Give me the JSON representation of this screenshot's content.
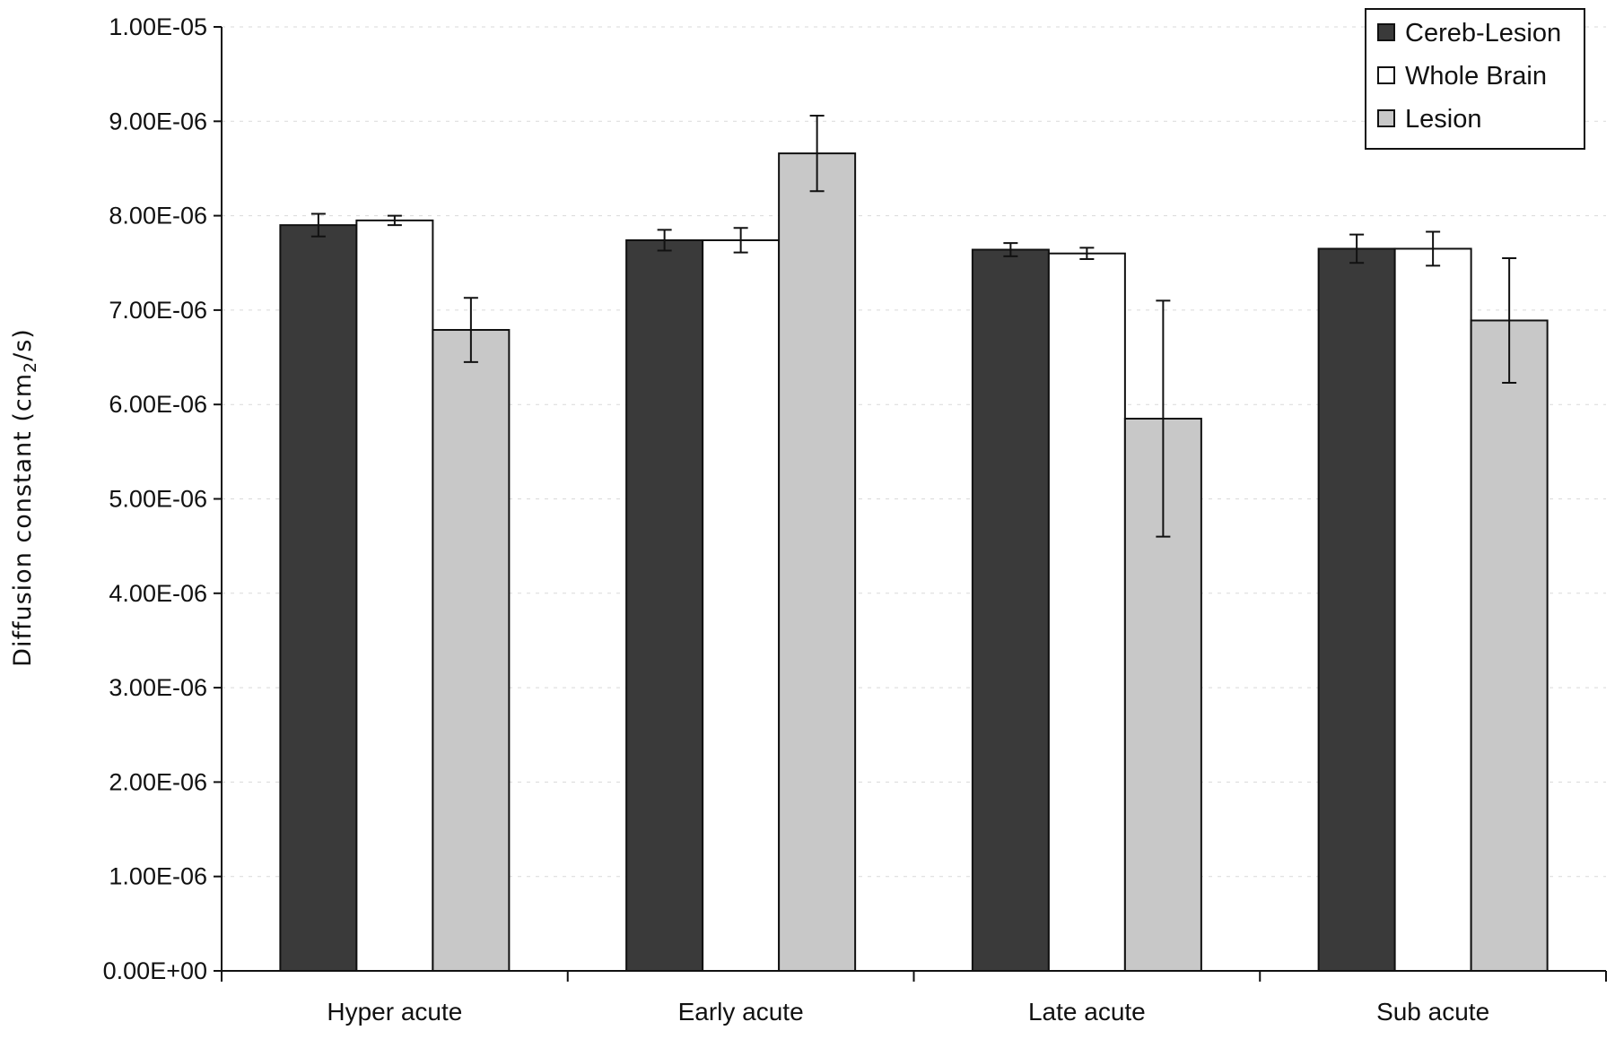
{
  "chart_data": {
    "type": "bar",
    "title": "",
    "xlabel": "",
    "ylabel": "Diffusion constant (cm",
    "ylabel_sub": "2",
    "ylabel_end": "/s)",
    "categories": [
      "Hyper acute",
      "Early acute",
      "Late acute",
      "Sub acute"
    ],
    "ylim": [
      0,
      1e-05
    ],
    "yticks": [
      0,
      1e-06,
      2e-06,
      3e-06,
      4e-06,
      5e-06,
      6e-06,
      7e-06,
      8e-06,
      9e-06,
      1e-05
    ],
    "ytick_labels": [
      "0.00E+00",
      "1.00E-06",
      "2.00E-06",
      "3.00E-06",
      "4.00E-06",
      "5.00E-06",
      "6.00E-06",
      "7.00E-06",
      "8.00E-06",
      "9.00E-06",
      "1.00E-05"
    ],
    "legend_position": "top-right",
    "grid": true,
    "series": [
      {
        "name": "Cereb-Lesion",
        "color": "#3a3a3a",
        "values": [
          7.9e-06,
          7.74e-06,
          7.64e-06,
          7.65e-06
        ],
        "errors": [
          1.2e-07,
          1.1e-07,
          7e-08,
          1.5e-07
        ]
      },
      {
        "name": "Whole Brain",
        "color": "#ffffff",
        "values": [
          7.95e-06,
          7.74e-06,
          7.6e-06,
          7.65e-06
        ],
        "errors": [
          5e-08,
          1.3e-07,
          6e-08,
          1.8e-07
        ]
      },
      {
        "name": "Lesion",
        "color": "#c8c8c8",
        "values": [
          6.79e-06,
          8.66e-06,
          5.85e-06,
          6.89e-06
        ],
        "errors": [
          3.4e-07,
          4e-07,
          1.25e-06,
          6.6e-07
        ]
      }
    ]
  }
}
